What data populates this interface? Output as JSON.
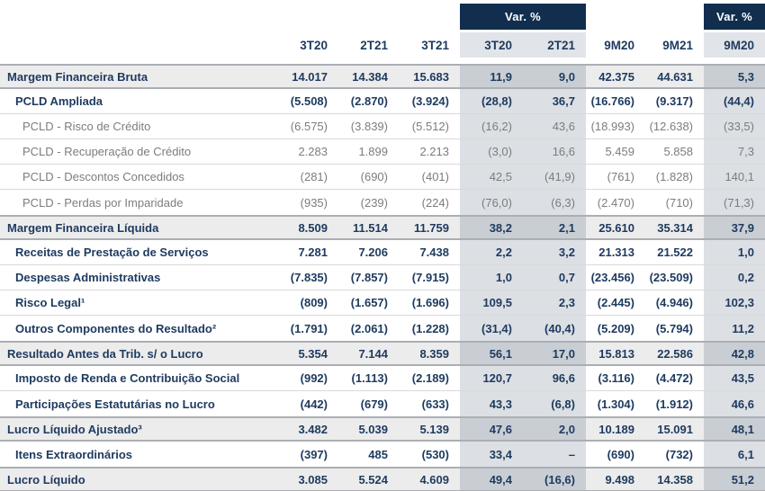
{
  "header": {
    "var_quarter_label": "Var. %",
    "var_ytd_label": "Var. %",
    "columns": [
      "3T20",
      "2T21",
      "3T21",
      "3T20",
      "2T21",
      "9M20",
      "9M21",
      "9M20"
    ]
  },
  "colors": {
    "navy_text": "#1d3a5f",
    "navy_header_box": "#112e4f",
    "gray_text": "#7a7d80",
    "major_row_bg": "#ececec",
    "major_row_band_bg": "#c9ced4",
    "row_band_bg": "#dcdfe3",
    "header_band_bg": "#e1e4e8",
    "light_border": "#d9d9d9",
    "dark_border": "#abaeb3"
  },
  "table": {
    "rows": [
      {
        "label": "Margem Financeira Bruta",
        "type": "major",
        "values": [
          "14.017",
          "14.384",
          "15.683",
          "11,9",
          "9,0",
          "42.375",
          "44.631",
          "5,3"
        ]
      },
      {
        "label": "PCLD Ampliada",
        "type": "bold",
        "values": [
          "(5.508)",
          "(2.870)",
          "(3.924)",
          "(28,8)",
          "36,7",
          "(16.766)",
          "(9.317)",
          "(44,4)"
        ]
      },
      {
        "label": "PCLD - Risco de Crédito",
        "type": "light",
        "values": [
          "(6.575)",
          "(3.839)",
          "(5.512)",
          "(16,2)",
          "43,6",
          "(18.993)",
          "(12.638)",
          "(33,5)"
        ]
      },
      {
        "label": "PCLD - Recuperação de Crédito",
        "type": "light",
        "values": [
          "2.283",
          "1.899",
          "2.213",
          "(3,0)",
          "16,6",
          "5.459",
          "5.858",
          "7,3"
        ]
      },
      {
        "label": "PCLD - Descontos Concedidos",
        "type": "light",
        "values": [
          "(281)",
          "(690)",
          "(401)",
          "42,5",
          "(41,9)",
          "(761)",
          "(1.828)",
          "140,1"
        ]
      },
      {
        "label": "PCLD - Perdas por Imparidade",
        "type": "light",
        "values": [
          "(935)",
          "(239)",
          "(224)",
          "(76,0)",
          "(6,3)",
          "(2.470)",
          "(710)",
          "(71,3)"
        ]
      },
      {
        "label": "Margem Financeira Líquida",
        "type": "major",
        "values": [
          "8.509",
          "11.514",
          "11.759",
          "38,2",
          "2,1",
          "25.610",
          "35.314",
          "37,9"
        ]
      },
      {
        "label": "Receitas de Prestação de Serviços",
        "type": "bold",
        "values": [
          "7.281",
          "7.206",
          "7.438",
          "2,2",
          "3,2",
          "21.313",
          "21.522",
          "1,0"
        ]
      },
      {
        "label": "Despesas Administrativas",
        "type": "bold",
        "values": [
          "(7.835)",
          "(7.857)",
          "(7.915)",
          "1,0",
          "0,7",
          "(23.456)",
          "(23.509)",
          "0,2"
        ]
      },
      {
        "label": "Risco Legal¹",
        "type": "bold",
        "values": [
          "(809)",
          "(1.657)",
          "(1.696)",
          "109,5",
          "2,3",
          "(2.445)",
          "(4.946)",
          "102,3"
        ]
      },
      {
        "label": "Outros Componentes do Resultado²",
        "type": "bold",
        "values": [
          "(1.791)",
          "(2.061)",
          "(1.228)",
          "(31,4)",
          "(40,4)",
          "(5.209)",
          "(5.794)",
          "11,2"
        ]
      },
      {
        "label": "Resultado Antes da Trib. s/ o Lucro",
        "type": "major",
        "values": [
          "5.354",
          "7.144",
          "8.359",
          "56,1",
          "17,0",
          "15.813",
          "22.586",
          "42,8"
        ]
      },
      {
        "label": "Imposto de Renda e Contribuição Social",
        "type": "bold",
        "values": [
          "(992)",
          "(1.113)",
          "(2.189)",
          "120,7",
          "96,6",
          "(3.116)",
          "(4.472)",
          "43,5"
        ]
      },
      {
        "label": "Participações Estatutárias no Lucro",
        "type": "bold",
        "values": [
          "(442)",
          "(679)",
          "(633)",
          "43,3",
          "(6,8)",
          "(1.304)",
          "(1.912)",
          "46,6"
        ]
      },
      {
        "label": "Lucro Líquido Ajustado³",
        "type": "major",
        "values": [
          "3.482",
          "5.039",
          "5.139",
          "47,6",
          "2,0",
          "10.189",
          "15.091",
          "48,1"
        ]
      },
      {
        "label": "Itens Extraordinários",
        "type": "bold",
        "values": [
          "(397)",
          "485",
          "(530)",
          "33,4",
          "–",
          "(690)",
          "(732)",
          "6,1"
        ]
      },
      {
        "label": "Lucro Líquido",
        "type": "major",
        "values": [
          "3.085",
          "5.524",
          "4.609",
          "49,4",
          "(16,6)",
          "9.498",
          "14.358",
          "51,2"
        ]
      }
    ]
  }
}
